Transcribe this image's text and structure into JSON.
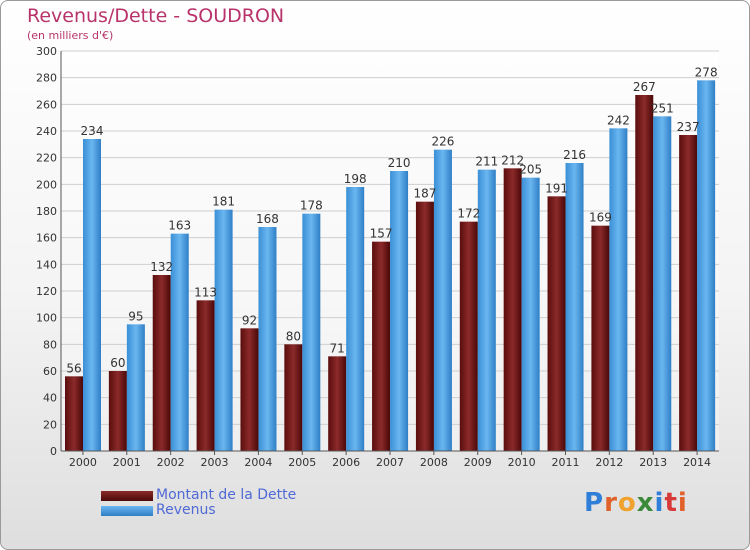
{
  "header": {
    "title": "Revenus/Dette - SOUDRON",
    "subtitle": "(en milliers d'€)"
  },
  "legend": {
    "items": [
      {
        "label": "Montant de la Dette",
        "color": "#7a1e1e"
      },
      {
        "label": "Revenus",
        "color": "#4fa3e6"
      }
    ]
  },
  "logo": {
    "text": "Proxiti",
    "colors": [
      "#2f7fd8",
      "#e0622a",
      "#f0a22e",
      "#3a8a3a",
      "#2f7fd8",
      "#d83a3a",
      "#e0622a"
    ]
  },
  "chart_data": {
    "type": "bar",
    "title": "Revenus/Dette - SOUDRON",
    "subtitle": "(en milliers d'€)",
    "categories": [
      "2000",
      "2001",
      "2002",
      "2003",
      "2004",
      "2005",
      "2006",
      "2007",
      "2008",
      "2009",
      "2010",
      "2011",
      "2012",
      "2013",
      "2014"
    ],
    "series": [
      {
        "name": "Montant de la Dette",
        "color": "#7a1e1e",
        "values": [
          56,
          60,
          132,
          113,
          92,
          80,
          71,
          157,
          187,
          172,
          212,
          191,
          169,
          267,
          237
        ]
      },
      {
        "name": "Revenus",
        "color": "#4fa3e6",
        "values": [
          234,
          95,
          163,
          181,
          168,
          178,
          198,
          210,
          226,
          211,
          205,
          216,
          242,
          251,
          278
        ]
      }
    ],
    "ylim": [
      0,
      300
    ],
    "yticks": [
      0,
      20,
      40,
      60,
      80,
      100,
      120,
      140,
      160,
      180,
      200,
      220,
      240,
      260,
      280,
      300
    ],
    "grid": true,
    "legend_position": "bottom-left"
  }
}
